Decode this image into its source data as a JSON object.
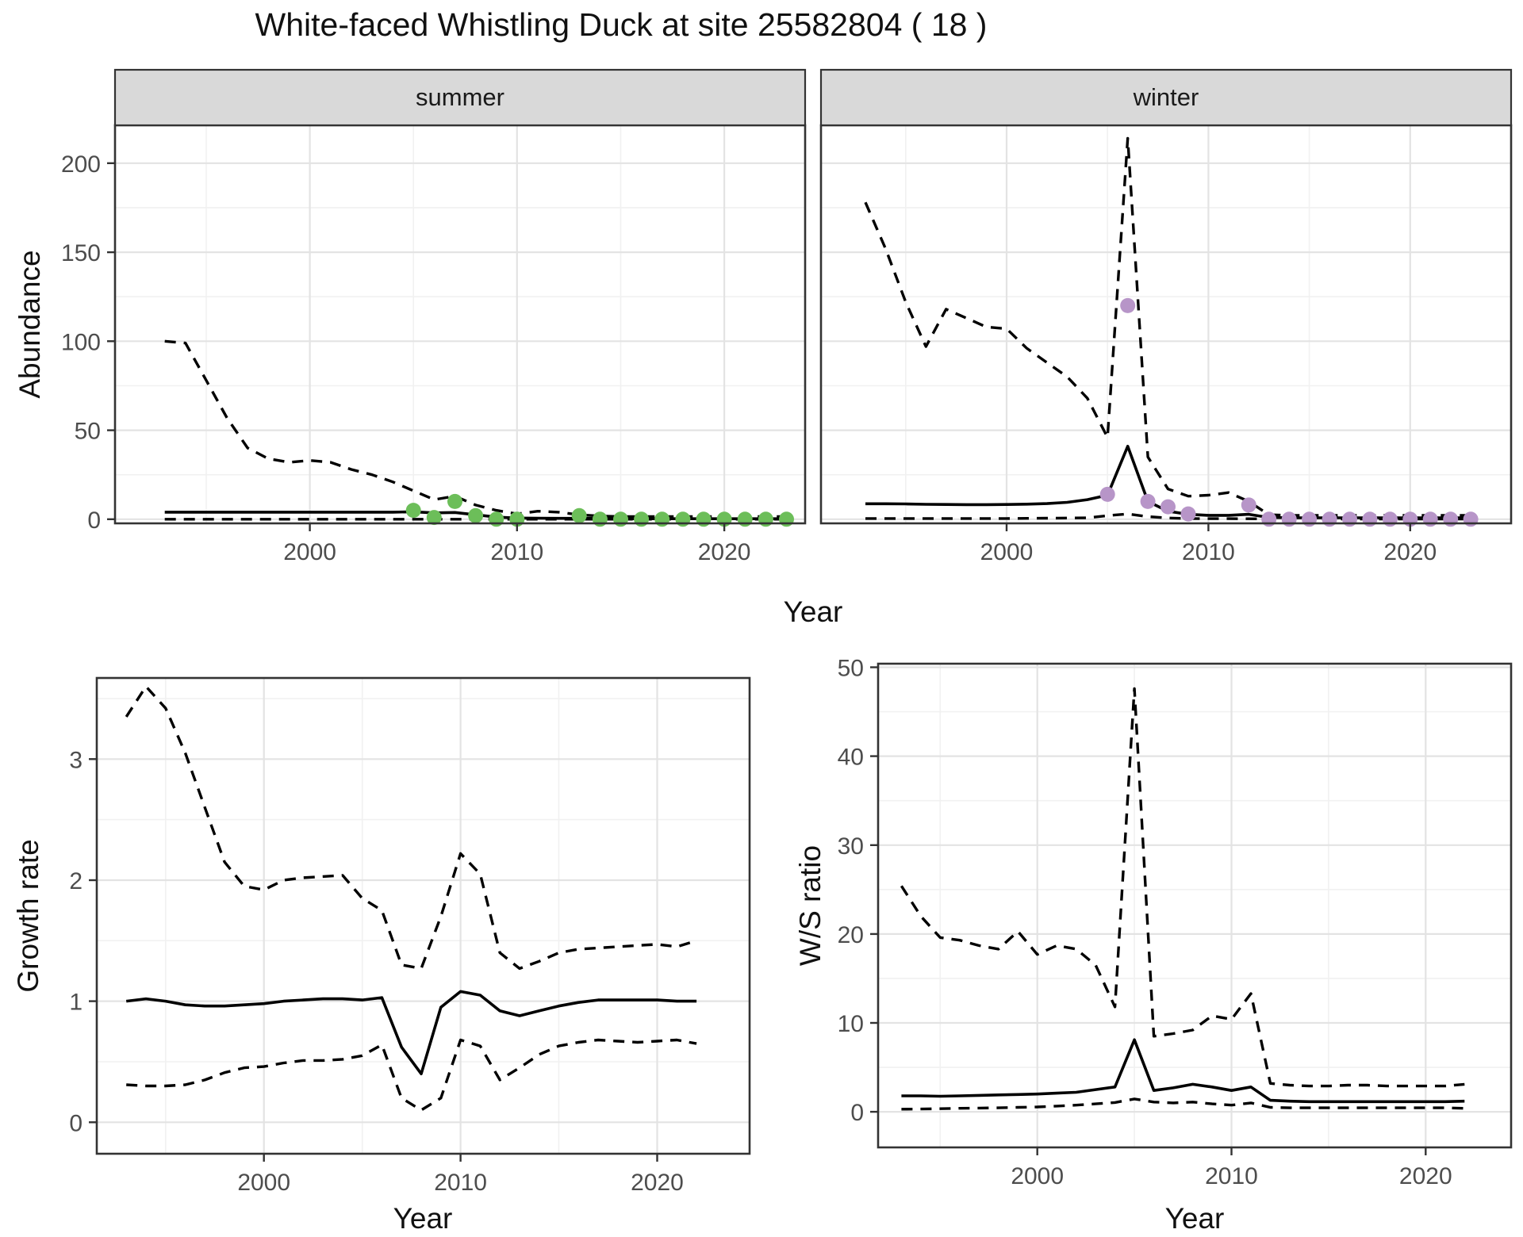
{
  "title": "White-faced Whistling Duck at site 25582804 ( 18 )",
  "axis_labels": {
    "year": "Year"
  },
  "point_colors": {
    "summer": "#6cbe59",
    "winter": "#b795c8"
  },
  "chart_data": [
    {
      "id": "summer",
      "type": "line",
      "facet_label": "summer",
      "ylabel": "Abundance",
      "xlabel": "Year",
      "show_y_axis": true,
      "xlim": [
        1991,
        2024
      ],
      "ylim": [
        0,
        220
      ],
      "x_ticks": [
        2000,
        2010,
        2020
      ],
      "x_minor": [
        1995,
        2005,
        2015
      ],
      "y_ticks": [
        0,
        50,
        100,
        150,
        200
      ],
      "y_minor": [
        25,
        75,
        125,
        175
      ],
      "years": [
        1993,
        1994,
        1995,
        1996,
        1997,
        1998,
        1999,
        2000,
        2001,
        2002,
        2003,
        2004,
        2005,
        2006,
        2007,
        2008,
        2009,
        2010,
        2011,
        2012,
        2013,
        2014,
        2015,
        2016,
        2017,
        2018,
        2019,
        2020,
        2021,
        2022,
        2023
      ],
      "series": [
        {
          "name": "upper_ci",
          "linetype": "dashed",
          "values": [
            100,
            99,
            78,
            57,
            40,
            34,
            32,
            33,
            32,
            28,
            25,
            21,
            16,
            11,
            13,
            8,
            5,
            3,
            4.5,
            4,
            2.5,
            1.8,
            1.5,
            1.5,
            1.5,
            1.5,
            1.5,
            1.5,
            1.5,
            1.5,
            1.5
          ]
        },
        {
          "name": "median",
          "linetype": "solid",
          "values": [
            4,
            4,
            4,
            4,
            4,
            4,
            4,
            4,
            4,
            4,
            4,
            4,
            4.2,
            3.6,
            3.8,
            2.5,
            1.2,
            0.7,
            0.6,
            0.5,
            0.5,
            0.4,
            0.3,
            0.3,
            0.3,
            0.3,
            0.3,
            0.3,
            0.3,
            0.3,
            0.3
          ]
        },
        {
          "name": "lower_ci",
          "linetype": "dashed",
          "values": [
            0,
            0,
            0,
            0,
            0,
            0,
            0,
            0,
            0,
            0,
            0,
            0,
            0,
            0,
            0,
            0,
            0,
            0,
            0,
            0,
            0,
            0,
            0,
            0,
            0,
            0,
            0,
            0,
            0,
            0,
            0
          ]
        }
      ],
      "points": {
        "color": "#6cbe59",
        "data": [
          [
            2005,
            5
          ],
          [
            2006,
            1
          ],
          [
            2007,
            10
          ],
          [
            2008,
            2
          ],
          [
            2009,
            0
          ],
          [
            2010,
            0
          ],
          [
            2013,
            2
          ],
          [
            2014,
            0
          ],
          [
            2015,
            0
          ],
          [
            2016,
            0
          ],
          [
            2017,
            0
          ],
          [
            2018,
            0
          ],
          [
            2019,
            0
          ],
          [
            2020,
            0
          ],
          [
            2021,
            0
          ],
          [
            2022,
            0
          ],
          [
            2023,
            0
          ]
        ]
      }
    },
    {
      "id": "winter",
      "type": "line",
      "facet_label": "winter",
      "xlabel": "Year",
      "show_y_axis": false,
      "xlim": [
        1991,
        2025
      ],
      "ylim": [
        0,
        220
      ],
      "x_ticks": [
        2000,
        2010,
        2020
      ],
      "x_minor": [
        1995,
        2005,
        2015
      ],
      "y_ticks": [
        0,
        50,
        100,
        150,
        200
      ],
      "y_minor": [
        25,
        75,
        125,
        175
      ],
      "years": [
        1993,
        1994,
        1995,
        1996,
        1997,
        1998,
        1999,
        2000,
        2001,
        2002,
        2003,
        2004,
        2005,
        2006,
        2007,
        2008,
        2009,
        2010,
        2011,
        2012,
        2013,
        2014,
        2015,
        2016,
        2017,
        2018,
        2019,
        2020,
        2021,
        2022,
        2023
      ],
      "series": [
        {
          "name": "upper_ci",
          "linetype": "dashed",
          "values": [
            178,
            152,
            122,
            97,
            118,
            113,
            108,
            107,
            96,
            88,
            80,
            68,
            46,
            214,
            35,
            17,
            13,
            13.5,
            15,
            10,
            2.5,
            2.2,
            2.2,
            2.2,
            2.2,
            2.2,
            2.2,
            2.2,
            2.2,
            2.2,
            2.2
          ]
        },
        {
          "name": "median",
          "linetype": "solid",
          "values": [
            8.7,
            8.7,
            8.6,
            8.4,
            8.3,
            8.2,
            8.2,
            8.3,
            8.5,
            8.8,
            9.5,
            11,
            13.5,
            41,
            10,
            4.5,
            2.8,
            2.2,
            2.2,
            2.8,
            1,
            0.8,
            0.8,
            0.8,
            0.8,
            0.8,
            0.8,
            0.8,
            0.8,
            0.8,
            0.8
          ]
        },
        {
          "name": "lower_ci",
          "linetype": "dashed",
          "values": [
            0.4,
            0.4,
            0.4,
            0.4,
            0.4,
            0.4,
            0.4,
            0.4,
            0.5,
            0.6,
            0.7,
            0.8,
            2,
            3,
            1.5,
            0.7,
            0.4,
            0.35,
            0.35,
            0.3,
            0.15,
            0.15,
            0.15,
            0.15,
            0.15,
            0.15,
            0.15,
            0.15,
            0.15,
            0.15,
            0.15
          ]
        }
      ],
      "points": {
        "color": "#b795c8",
        "data": [
          [
            2005,
            14
          ],
          [
            2006,
            120
          ],
          [
            2007,
            10
          ],
          [
            2008,
            7
          ],
          [
            2009,
            3
          ],
          [
            2012,
            8
          ],
          [
            2013,
            0
          ],
          [
            2014,
            0
          ],
          [
            2015,
            0
          ],
          [
            2016,
            0
          ],
          [
            2017,
            0
          ],
          [
            2018,
            0
          ],
          [
            2019,
            0
          ],
          [
            2020,
            0
          ],
          [
            2021,
            0
          ],
          [
            2022,
            0
          ],
          [
            2023,
            0
          ]
        ]
      }
    },
    {
      "id": "growth",
      "type": "line",
      "ylabel": "Growth rate",
      "xlabel": "Year",
      "show_y_axis": true,
      "xlim": [
        1992,
        2024
      ],
      "ylim": [
        0,
        3.6
      ],
      "x_ticks": [
        2000,
        2010,
        2020
      ],
      "x_minor": [
        1995,
        2005,
        2015
      ],
      "y_ticks": [
        0,
        1,
        2,
        3
      ],
      "y_minor": [
        0.5,
        1.5,
        2.5,
        3.5
      ],
      "years": [
        1993,
        1994,
        1995,
        1996,
        1997,
        1998,
        1999,
        2000,
        2001,
        2002,
        2003,
        2004,
        2005,
        2006,
        2007,
        2008,
        2009,
        2010,
        2011,
        2012,
        2013,
        2014,
        2015,
        2016,
        2017,
        2018,
        2019,
        2020,
        2021,
        2022
      ],
      "series": [
        {
          "name": "upper_ci",
          "linetype": "dashed",
          "values": [
            3.35,
            3.6,
            3.42,
            3.05,
            2.6,
            2.15,
            1.95,
            1.92,
            2.0,
            2.02,
            2.03,
            2.04,
            1.85,
            1.75,
            1.3,
            1.27,
            1.7,
            2.22,
            2.05,
            1.4,
            1.27,
            1.33,
            1.4,
            1.43,
            1.44,
            1.45,
            1.46,
            1.47,
            1.45,
            1.5
          ]
        },
        {
          "name": "median",
          "linetype": "solid",
          "values": [
            1.0,
            1.02,
            1.0,
            0.97,
            0.96,
            0.96,
            0.97,
            0.98,
            1.0,
            1.01,
            1.02,
            1.02,
            1.01,
            1.03,
            0.62,
            0.4,
            0.95,
            1.08,
            1.05,
            0.92,
            0.88,
            0.92,
            0.96,
            0.99,
            1.01,
            1.01,
            1.01,
            1.01,
            1.0,
            1.0
          ]
        },
        {
          "name": "lower_ci",
          "linetype": "dashed",
          "values": [
            0.31,
            0.3,
            0.3,
            0.31,
            0.35,
            0.41,
            0.45,
            0.46,
            0.49,
            0.51,
            0.51,
            0.52,
            0.55,
            0.64,
            0.2,
            0.1,
            0.2,
            0.68,
            0.63,
            0.35,
            0.45,
            0.56,
            0.63,
            0.66,
            0.68,
            0.67,
            0.66,
            0.67,
            0.68,
            0.65
          ]
        }
      ]
    },
    {
      "id": "ws",
      "type": "line",
      "ylabel": "W/S ratio",
      "xlabel": "Year",
      "show_y_axis": true,
      "xlim": [
        1992,
        2024
      ],
      "ylim": [
        0,
        50
      ],
      "x_ticks": [
        2000,
        2010,
        2020
      ],
      "x_minor": [
        1995,
        2005,
        2015
      ],
      "y_ticks": [
        0,
        10,
        20,
        30,
        40,
        50
      ],
      "y_minor": [
        5,
        15,
        25,
        35,
        45
      ],
      "years": [
        1993,
        1994,
        1995,
        1996,
        1997,
        1998,
        1999,
        2000,
        2001,
        2002,
        2003,
        2004,
        2005,
        2006,
        2007,
        2008,
        2009,
        2010,
        2011,
        2012,
        2013,
        2014,
        2015,
        2016,
        2017,
        2018,
        2019,
        2020,
        2021,
        2022
      ],
      "series": [
        {
          "name": "upper_ci",
          "linetype": "dashed",
          "values": [
            25.4,
            22,
            19.6,
            19.3,
            18.7,
            18.3,
            20.3,
            17.7,
            18.7,
            18.3,
            16.5,
            11.8,
            47.6,
            8.5,
            8.8,
            9.2,
            10.8,
            10.4,
            13.3,
            3.2,
            3.0,
            2.9,
            2.9,
            3.0,
            3.0,
            2.9,
            2.9,
            2.9,
            2.9,
            3.1
          ]
        },
        {
          "name": "median",
          "linetype": "solid",
          "values": [
            1.8,
            1.8,
            1.75,
            1.8,
            1.85,
            1.9,
            1.95,
            2.0,
            2.1,
            2.2,
            2.5,
            2.8,
            8.1,
            2.4,
            2.7,
            3.1,
            2.8,
            2.4,
            2.8,
            1.3,
            1.2,
            1.15,
            1.15,
            1.15,
            1.15,
            1.15,
            1.15,
            1.15,
            1.15,
            1.2
          ]
        },
        {
          "name": "lower_ci",
          "linetype": "dashed",
          "values": [
            0.3,
            0.32,
            0.35,
            0.4,
            0.42,
            0.45,
            0.5,
            0.55,
            0.65,
            0.75,
            0.9,
            1.05,
            1.45,
            1.1,
            1.0,
            1.1,
            0.9,
            0.75,
            1.0,
            0.5,
            0.45,
            0.45,
            0.45,
            0.45,
            0.45,
            0.45,
            0.45,
            0.45,
            0.45,
            0.4
          ]
        }
      ]
    }
  ]
}
